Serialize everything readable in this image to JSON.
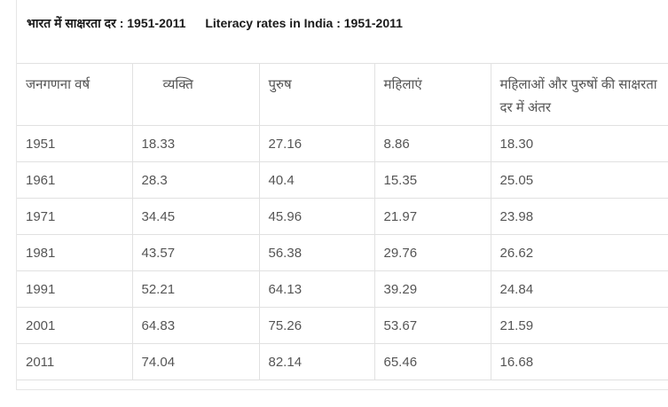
{
  "caption": {
    "hindi": "भारत में साक्षरता दर : 1951-2011",
    "english": "Literacy rates in India : 1951-2011"
  },
  "table": {
    "headers": [
      "जनगणना वर्ष",
      "व्यक्ति",
      "पुरुष",
      "महिलाएं",
      "महिलाओं और पुरुषों की साक्षरता दर में अंतर"
    ],
    "rows": [
      [
        "1951",
        "18.33",
        "27.16",
        "8.86",
        "18.30"
      ],
      [
        "1961",
        "28.3",
        "40.4",
        "15.35",
        "25.05"
      ],
      [
        "1971",
        "34.45",
        "45.96",
        "21.97",
        "23.98"
      ],
      [
        "1981",
        "43.57",
        "56.38",
        "29.76",
        "26.62"
      ],
      [
        "1991",
        "52.21",
        "64.13",
        "39.29",
        "24.84"
      ],
      [
        "2001",
        "64.83",
        "75.26",
        "53.67",
        "21.59"
      ],
      [
        "2011",
        "74.04",
        "82.14",
        "65.46",
        "16.68"
      ]
    ]
  }
}
